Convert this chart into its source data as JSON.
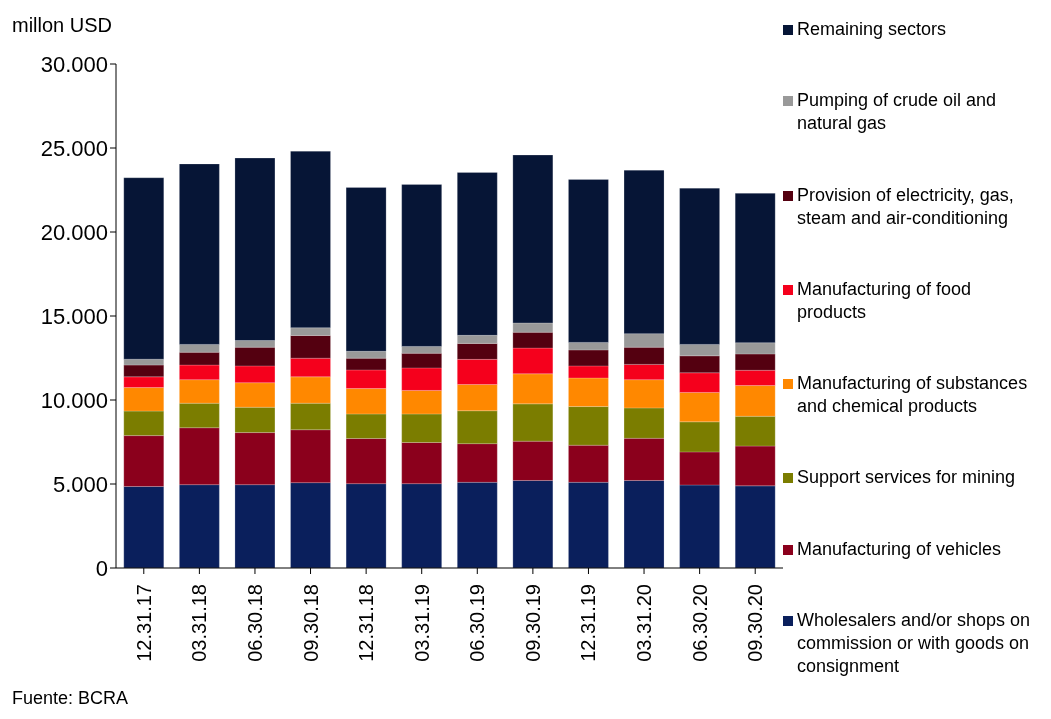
{
  "chart_data": {
    "type": "bar",
    "stacked": true,
    "ylabel": "millon USD",
    "categories": [
      "12.31.17",
      "03.31.18",
      "06.30.18",
      "09.30.18",
      "12.31.18",
      "03.31.19",
      "06.30.19",
      "09.30.19",
      "12.31.19",
      "03.31.20",
      "06.30.20",
      "09.30.20"
    ],
    "series": [
      {
        "name": "Wholesalers and/or shops on commission or with goods on consignment",
        "color": "#0a1f5c",
        "values": [
          4850,
          4960,
          4960,
          5080,
          5020,
          5020,
          5100,
          5210,
          5100,
          5210,
          4940,
          4890
        ]
      },
      {
        "name": "Manufacturing of vehicles",
        "color": "#8b001c",
        "values": [
          3030,
          3390,
          3100,
          3150,
          2690,
          2450,
          2300,
          2340,
          2210,
          2510,
          1970,
          2370
        ]
      },
      {
        "name": "Support services for mining",
        "color": "#7b7d00",
        "values": [
          1460,
          1460,
          1510,
          1580,
          1460,
          1700,
          1960,
          2220,
          2300,
          1810,
          1790,
          1770
        ]
      },
      {
        "name": "Manufacturing of substances and chemical products",
        "color": "#ff8800",
        "values": [
          1400,
          1400,
          1460,
          1570,
          1510,
          1400,
          1560,
          1790,
          1700,
          1680,
          1750,
          1830
        ]
      },
      {
        "name": "Manufacturing of food products",
        "color": "#f5001c",
        "values": [
          640,
          870,
          1000,
          1110,
          1110,
          1340,
          1500,
          1530,
          720,
          910,
          1170,
          910
        ]
      },
      {
        "name": "Provision of electricity, gas, steam and air-conditioning",
        "color": "#540010",
        "values": [
          700,
          760,
          1110,
          1350,
          700,
          870,
          950,
          940,
          950,
          1020,
          1010,
          970
        ]
      },
      {
        "name": "Pumping of crude oil and natural gas",
        "color": "#999999",
        "values": [
          350,
          470,
          400,
          460,
          410,
          410,
          480,
          560,
          450,
          810,
          680,
          670
        ]
      },
      {
        "name": "Remaining sectors",
        "color": "#061536",
        "values": [
          10800,
          10740,
          10860,
          10510,
          9750,
          9640,
          9690,
          9990,
          9700,
          9730,
          9300,
          8890
        ]
      }
    ],
    "ylim": [
      0,
      30000
    ],
    "yticks": [
      0,
      {
        "value": 5000,
        "label": "5.000"
      },
      {
        "value": 10000,
        "label": "10.000"
      },
      {
        "value": 15000,
        "label": "15.000"
      },
      {
        "value": 20000,
        "label": "20.000"
      },
      {
        "value": 25000,
        "label": "25.000"
      },
      {
        "value": 30000,
        "label": "30.000"
      }
    ],
    "grid": false,
    "legend": "right",
    "annotations": [
      "Fuente: BCRA"
    ]
  }
}
